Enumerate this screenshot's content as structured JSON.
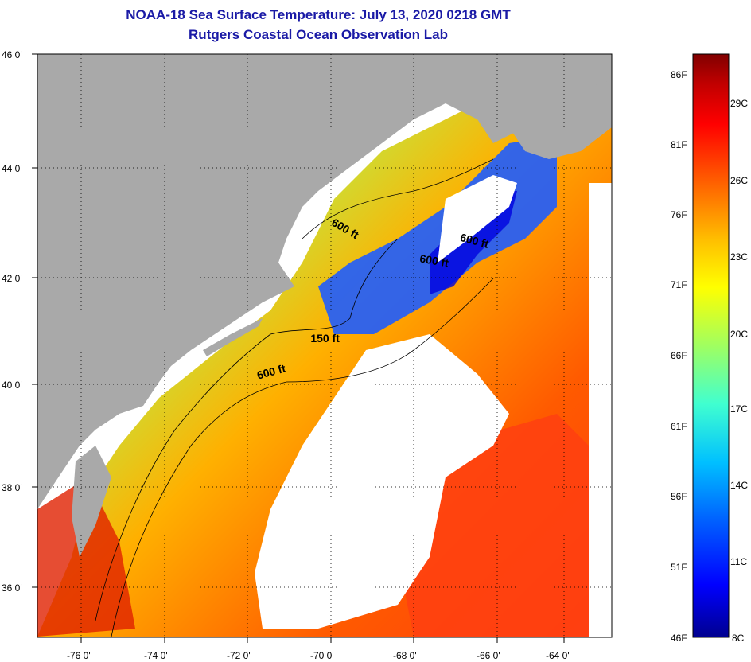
{
  "header": {
    "title": "NOAA-18 Sea Surface Temperature:  July 13, 2020 0218 GMT",
    "subtitle": "Rutgers Coastal Ocean Observation Lab"
  },
  "map": {
    "lon_range": [
      -77,
      -63
    ],
    "lat_range": [
      35,
      46
    ],
    "lon_ticks": [
      "-76 0'",
      "-74 0'",
      "-72 0'",
      "-70 0'",
      "-68 0'",
      "-66 0'",
      "-64 0'"
    ],
    "lat_ticks": [
      "46 0'",
      "44 0'",
      "42 0'",
      "40 0'",
      "38 0'",
      "36 0'"
    ],
    "contour_labels": [
      {
        "text": "600 ft",
        "lon": -69.8,
        "lat": 42.8
      },
      {
        "text": "600 ft",
        "lon": -66.6,
        "lat": 42.5
      },
      {
        "text": "600 ft",
        "lon": -67.6,
        "lat": 42.1
      },
      {
        "text": "150 ft",
        "lon": -70.3,
        "lat": 40.6
      },
      {
        "text": "600 ft",
        "lon": -71.6,
        "lat": 39.9
      }
    ],
    "colors": {
      "land": "#a9a9a9",
      "no_data": "#ffffff"
    }
  },
  "colorbar": {
    "fahrenheit_labels": [
      "86F",
      "81F",
      "76F",
      "71F",
      "66F",
      "61F",
      "56F",
      "51F",
      "46F"
    ],
    "celsius_labels": [
      "29C",
      "26C",
      "23C",
      "20C",
      "17C",
      "14C",
      "11C",
      "8C"
    ],
    "range_c": [
      8,
      30.5
    ],
    "gradient": [
      "#00008f",
      "#0000ff",
      "#0060ff",
      "#00c0ff",
      "#40ffd0",
      "#a0ff60",
      "#ffff00",
      "#ffc000",
      "#ff6000",
      "#ff0000",
      "#c00000",
      "#800000"
    ]
  }
}
